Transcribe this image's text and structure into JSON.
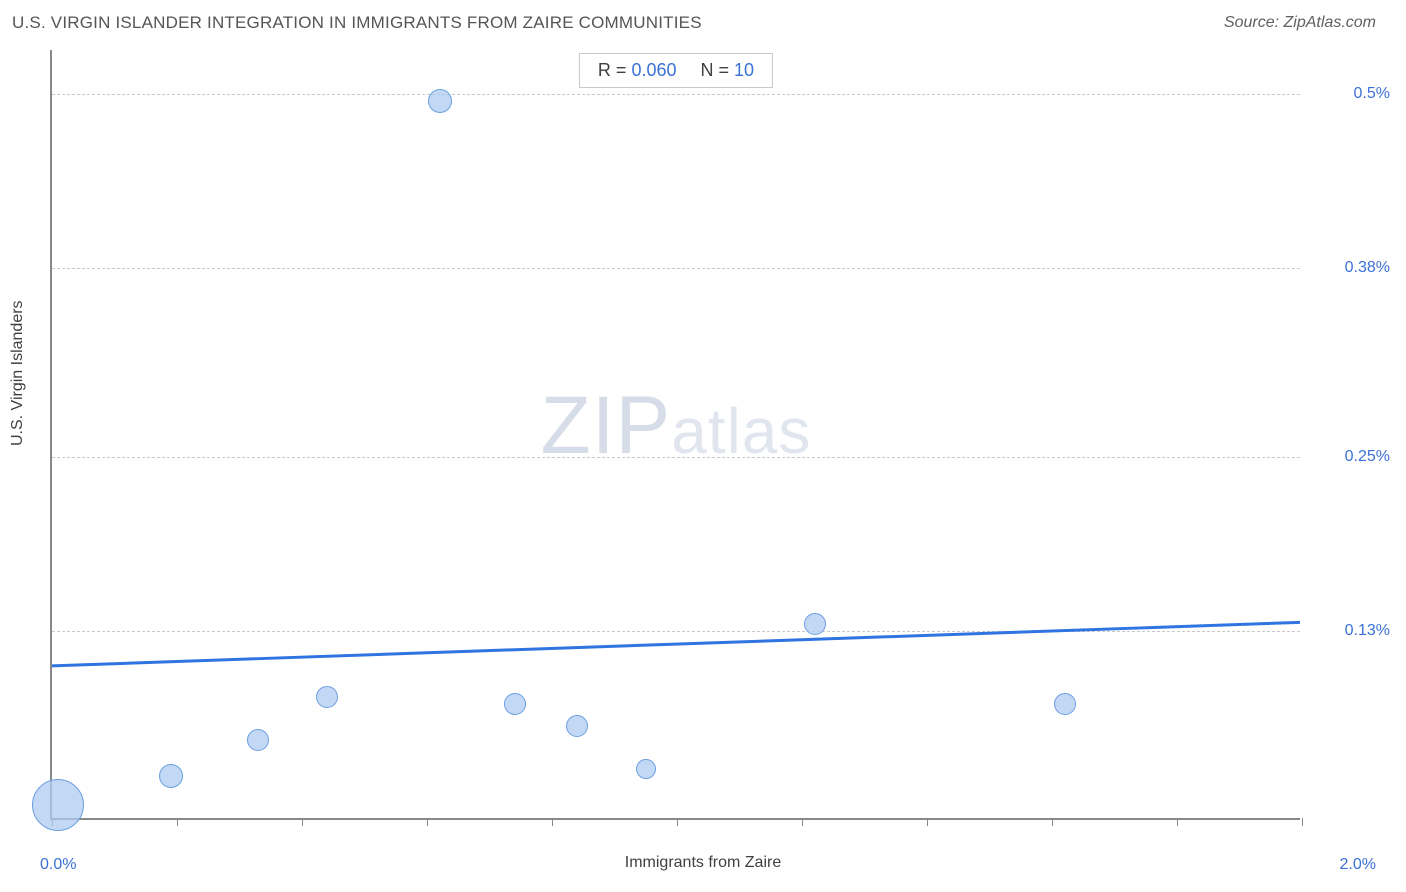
{
  "header": {
    "title": "U.S. VIRGIN ISLANDER INTEGRATION IN IMMIGRANTS FROM ZAIRE COMMUNITIES",
    "source_prefix": "Source: ",
    "source_name": "ZipAtlas.com"
  },
  "watermark": {
    "big": "ZIP",
    "small": "atlas"
  },
  "chart": {
    "type": "scatter-bubble",
    "xlabel": "Immigrants from Zaire",
    "ylabel": "U.S. Virgin Islanders",
    "xlim": [
      0.0,
      2.0
    ],
    "ylim": [
      0.0,
      0.53
    ],
    "x_min_label": "0.0%",
    "x_max_label": "2.0%",
    "y_ticks": [
      {
        "value": 0.13,
        "label": "0.13%"
      },
      {
        "value": 0.25,
        "label": "0.25%"
      },
      {
        "value": 0.38,
        "label": "0.38%"
      },
      {
        "value": 0.5,
        "label": "0.5%"
      }
    ],
    "x_tick_count": 11,
    "grid_color": "#c8c8c8",
    "axis_color": "#888888",
    "background_color": "#ffffff",
    "bubble_fill": "rgba(174,203,240,0.75)",
    "bubble_stroke": "#6b9fe0",
    "points": [
      {
        "x": 0.01,
        "y": 0.01,
        "size": 52
      },
      {
        "x": 0.19,
        "y": 0.03,
        "size": 24
      },
      {
        "x": 0.33,
        "y": 0.055,
        "size": 22
      },
      {
        "x": 0.44,
        "y": 0.085,
        "size": 22
      },
      {
        "x": 0.62,
        "y": 0.495,
        "size": 24
      },
      {
        "x": 0.74,
        "y": 0.08,
        "size": 22
      },
      {
        "x": 0.84,
        "y": 0.065,
        "size": 22
      },
      {
        "x": 0.95,
        "y": 0.035,
        "size": 20
      },
      {
        "x": 1.22,
        "y": 0.135,
        "size": 22
      },
      {
        "x": 1.62,
        "y": 0.08,
        "size": 22
      }
    ],
    "trend": {
      "color": "#2f74e0",
      "width": 3,
      "y_at_xmin": 0.105,
      "y_at_xmax": 0.135
    },
    "stats": {
      "r_label": "R =",
      "r_value": "0.060",
      "n_label": "N =",
      "n_value": "10"
    }
  }
}
